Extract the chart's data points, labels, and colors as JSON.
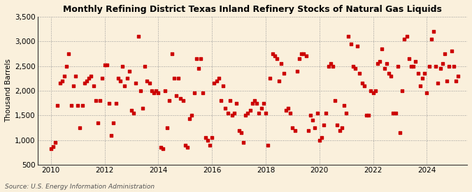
{
  "title": "Monthly Refining District Texas Inland Refinery Stocks of Natural Gas Liquids",
  "ylabel": "Thousand Barrels",
  "source": "Source: U.S. Energy Information Administration",
  "background_color": "#FAF0DC",
  "plot_background_color": "#FAF0DC",
  "marker_color": "#CC0000",
  "ylim": [
    500,
    3500
  ],
  "yticks": [
    500,
    1000,
    1500,
    2000,
    2500,
    3000,
    3500
  ],
  "xticks": [
    2010,
    2012,
    2014,
    2016,
    2018,
    2020,
    2022,
    2024
  ],
  "xlim": [
    2009.5,
    2025.5
  ],
  "values": {
    "2010-01": 820,
    "2010-02": 870,
    "2010-03": 950,
    "2010-04": 1700,
    "2010-05": 2150,
    "2010-06": 2200,
    "2010-07": 2300,
    "2010-08": 2500,
    "2010-09": 2750,
    "2010-10": 1700,
    "2010-11": 2100,
    "2010-12": 2300,
    "2011-01": 1700,
    "2011-02": 1250,
    "2011-03": 1700,
    "2011-04": 2150,
    "2011-05": 2200,
    "2011-06": 2250,
    "2011-07": 2300,
    "2011-08": 2100,
    "2011-09": 1800,
    "2011-10": 1350,
    "2011-11": 1800,
    "2011-12": 2250,
    "2012-01": 2520,
    "2012-02": 2520,
    "2012-03": 1750,
    "2012-04": 1100,
    "2012-05": 1350,
    "2012-06": 1750,
    "2012-07": 2250,
    "2012-08": 2200,
    "2012-09": 2500,
    "2012-10": 2100,
    "2012-11": 2250,
    "2012-12": 2400,
    "2013-01": 1600,
    "2013-02": 1550,
    "2013-03": 2150,
    "2013-04": 3100,
    "2013-05": 2000,
    "2013-06": 1650,
    "2013-07": 2500,
    "2013-08": 2200,
    "2013-09": 2150,
    "2013-10": 2000,
    "2013-11": 1950,
    "2013-12": 2000,
    "2014-01": 1950,
    "2014-02": 850,
    "2014-03": 820,
    "2014-04": 2000,
    "2014-05": 1250,
    "2014-06": 1800,
    "2014-07": 2750,
    "2014-08": 2250,
    "2014-09": 1900,
    "2014-10": 2250,
    "2014-11": 1850,
    "2014-12": 1800,
    "2015-01": 900,
    "2015-02": 850,
    "2015-03": 1430,
    "2015-04": 1500,
    "2015-05": 1950,
    "2015-06": 2650,
    "2015-07": 2450,
    "2015-08": 2650,
    "2015-09": 1950,
    "2015-10": 1050,
    "2015-11": 1000,
    "2015-12": 900,
    "2016-01": 1050,
    "2016-02": 2150,
    "2016-03": 2200,
    "2016-04": 2250,
    "2016-05": 1800,
    "2016-06": 2100,
    "2016-07": 1650,
    "2016-08": 1550,
    "2016-09": 1800,
    "2016-10": 1500,
    "2016-11": 1550,
    "2016-12": 1750,
    "2017-01": 1200,
    "2017-02": 1150,
    "2017-03": 950,
    "2017-04": 1500,
    "2017-05": 1550,
    "2017-06": 1600,
    "2017-07": 1750,
    "2017-08": 1800,
    "2017-09": 1750,
    "2017-10": 1550,
    "2017-11": 1650,
    "2017-12": 1750,
    "2018-01": 1550,
    "2018-02": 900,
    "2018-03": 2250,
    "2018-04": 2750,
    "2018-05": 2700,
    "2018-06": 2650,
    "2018-07": 2200,
    "2018-08": 2550,
    "2018-09": 2350,
    "2018-10": 1600,
    "2018-11": 1650,
    "2018-12": 1550,
    "2019-01": 1250,
    "2019-02": 1200,
    "2019-03": 2400,
    "2019-04": 2650,
    "2019-05": 2750,
    "2019-06": 2750,
    "2019-07": 2700,
    "2019-08": 1200,
    "2019-09": 1500,
    "2019-10": 1400,
    "2019-11": 1250,
    "2019-12": 1550,
    "2020-01": 1000,
    "2020-02": 1050,
    "2020-03": 1300,
    "2020-04": 1550,
    "2020-05": 2500,
    "2020-06": 2550,
    "2020-07": 2500,
    "2020-08": 1800,
    "2020-09": 1300,
    "2020-10": 1200,
    "2020-11": 1250,
    "2020-12": 1700,
    "2021-01": 1550,
    "2021-02": 3100,
    "2021-03": 2950,
    "2021-04": 2500,
    "2021-05": 2450,
    "2021-06": 2900,
    "2021-07": 2350,
    "2021-08": 2150,
    "2021-09": 2100,
    "2021-10": 1500,
    "2021-11": 1500,
    "2021-12": 2000,
    "2022-01": 1950,
    "2022-02": 2000,
    "2022-03": 2550,
    "2022-04": 2600,
    "2022-05": 2850,
    "2022-06": 2450,
    "2022-07": 2550,
    "2022-08": 2350,
    "2022-09": 2300,
    "2022-10": 1550,
    "2022-11": 1550,
    "2022-12": 2500,
    "2023-01": 1150,
    "2023-02": 2000,
    "2023-03": 3050,
    "2023-04": 3100,
    "2023-05": 2650,
    "2023-06": 2500,
    "2023-07": 2500,
    "2023-08": 2600,
    "2023-09": 2350,
    "2023-10": 2100,
    "2023-11": 2250,
    "2023-12": 2350,
    "2024-01": 1950,
    "2024-02": 2500,
    "2024-03": 3050,
    "2024-04": 3200,
    "2024-05": 2500,
    "2024-06": 2150,
    "2024-07": 2450,
    "2024-08": 2550,
    "2024-09": 2750,
    "2024-10": 2200,
    "2024-11": 2500,
    "2024-12": 2800,
    "2025-01": 2500,
    "2025-02": 2200,
    "2025-03": 2300
  }
}
